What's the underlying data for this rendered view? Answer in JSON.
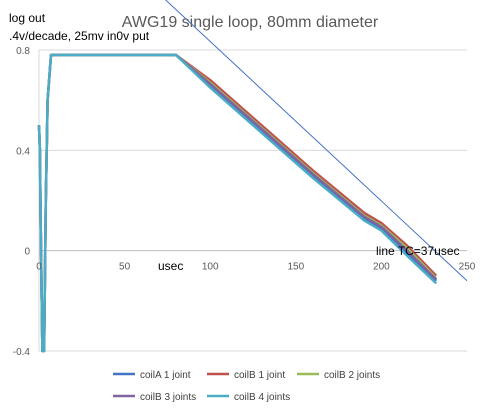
{
  "chart_data": {
    "type": "line",
    "title": "AWG19 single loop, 80mm diameter",
    "ylabel_lines": [
      "log out",
      ".4v/decade, 25mv in0v put"
    ],
    "xlabel": "usec",
    "annotation": "line TC=37usec",
    "xlim": [
      0,
      250
    ],
    "ylim": [
      -0.4,
      0.8
    ],
    "x_ticks": [
      0,
      50,
      100,
      150,
      200,
      250
    ],
    "x_tick_labels": [
      "0",
      "50",
      "100",
      "150",
      "200",
      "250"
    ],
    "y_ticks": [
      -0.4,
      0,
      0.4,
      0.8
    ],
    "y_tick_labels": [
      "-0.4",
      "0",
      "0.4",
      "0.8"
    ],
    "grid": "horizontal",
    "legend_position": "bottom",
    "series": [
      {
        "name": "coilA 1 joint",
        "color": "#4472c4",
        "x": [
          0,
          0.5,
          1,
          2,
          3,
          4,
          5,
          7,
          80,
          100,
          130,
          160,
          190,
          200,
          215,
          232
        ],
        "y": [
          0.5,
          0.4,
          0.1,
          -0.4,
          -0.4,
          0.2,
          0.6,
          0.78,
          0.78,
          0.66,
          0.48,
          0.3,
          0.13,
          0.09,
          -0.01,
          -0.12
        ]
      },
      {
        "name": "coilB 1 joint",
        "color": "#c0504d",
        "x": [
          0,
          0.5,
          1,
          2,
          3,
          4,
          5,
          7,
          80,
          100,
          130,
          160,
          190,
          200,
          215,
          232
        ],
        "y": [
          0.5,
          0.4,
          0.1,
          -0.4,
          -0.4,
          0.2,
          0.6,
          0.78,
          0.78,
          0.68,
          0.5,
          0.32,
          0.15,
          0.11,
          0.02,
          -0.1
        ]
      },
      {
        "name": "coilB 2 joints",
        "color": "#9bbb59",
        "x": [
          0,
          0.5,
          1,
          2,
          3,
          4,
          5,
          7,
          80,
          100,
          130,
          160,
          190,
          200,
          215,
          232
        ],
        "y": [
          0.5,
          0.4,
          0.1,
          -0.4,
          -0.4,
          0.2,
          0.6,
          0.78,
          0.78,
          0.67,
          0.49,
          0.31,
          0.14,
          0.1,
          0.01,
          -0.11
        ]
      },
      {
        "name": "coilB 3 joints",
        "color": "#8064a2",
        "x": [
          0,
          0.5,
          1,
          2,
          3,
          4,
          5,
          7,
          80,
          100,
          130,
          160,
          190,
          200,
          215,
          232
        ],
        "y": [
          0.5,
          0.4,
          0.1,
          -0.4,
          -0.4,
          0.2,
          0.6,
          0.78,
          0.78,
          0.665,
          0.485,
          0.305,
          0.135,
          0.095,
          0.0,
          -0.115
        ]
      },
      {
        "name": "coilB 4 joints",
        "color": "#4bacc6",
        "x": [
          0,
          0.5,
          1,
          2,
          3,
          4,
          5,
          7,
          80,
          100,
          130,
          160,
          190,
          200,
          215,
          232
        ],
        "y": [
          0.5,
          0.4,
          0.1,
          -0.4,
          -0.4,
          0.2,
          0.6,
          0.78,
          0.78,
          0.65,
          0.47,
          0.29,
          0.12,
          0.08,
          -0.02,
          -0.13
        ]
      }
    ],
    "fit_line": {
      "color": "#4472c4",
      "x": [
        0,
        250
      ],
      "y": [
        1.47,
        -0.12
      ]
    }
  }
}
